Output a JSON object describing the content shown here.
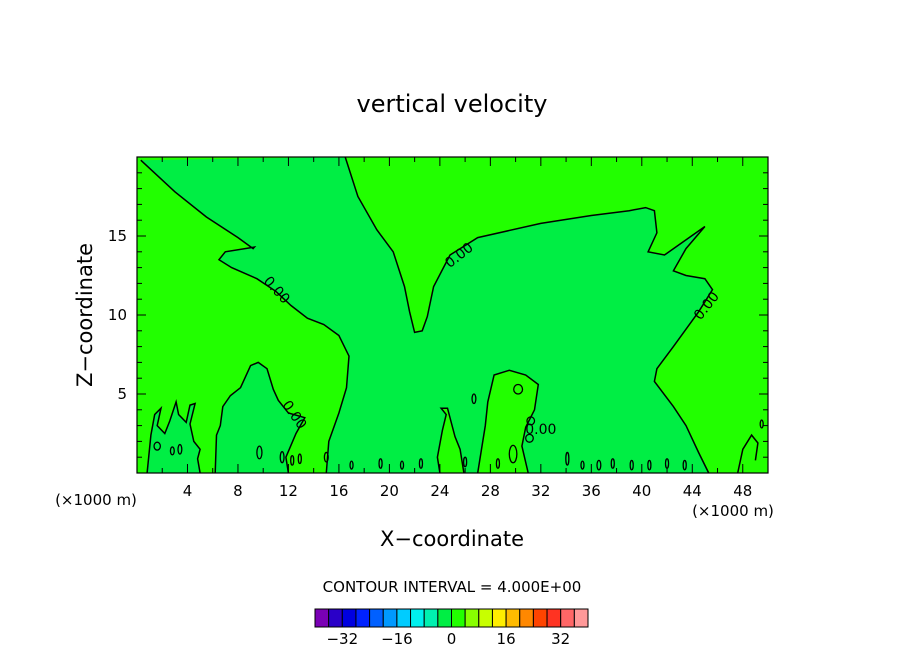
{
  "chart_data": {
    "type": "heatmap",
    "title": "vertical velocity",
    "xlabel": "X−coordinate",
    "ylabel": "Z−coordinate",
    "x_unit": "(×1000 m)",
    "xlim": [
      0,
      50
    ],
    "ylim": [
      0,
      20
    ],
    "x_ticks": [
      4,
      8,
      12,
      16,
      20,
      24,
      28,
      32,
      36,
      40,
      44,
      48
    ],
    "y_ticks": [
      5,
      10,
      15
    ],
    "contour_interval_text": "CONTOUR INTERVAL = 4.000E+00",
    "contour_label": "0.00",
    "region_colors": {
      "positive": "#22ff00",
      "negative": "#00ee44"
    },
    "zero_contour": [
      [
        [
          0.3,
          19.8
        ],
        [
          3.0,
          17.8
        ],
        [
          5.5,
          16.2
        ],
        [
          8.0,
          14.9
        ],
        [
          9.2,
          14.2
        ],
        [
          9.3,
          14.3
        ],
        [
          7.0,
          14.0
        ],
        [
          6.5,
          13.5
        ],
        [
          7.5,
          13.0
        ],
        [
          9.5,
          12.3
        ],
        [
          11.0,
          11.5
        ],
        [
          12.2,
          10.6
        ],
        [
          13.5,
          9.8
        ],
        [
          14.8,
          9.4
        ],
        [
          16.0,
          8.7
        ],
        [
          16.8,
          7.4
        ],
        [
          16.6,
          5.4
        ],
        [
          16.0,
          3.8
        ],
        [
          15.2,
          2.0
        ],
        [
          15.0,
          0
        ]
      ],
      [
        [
          16.5,
          20
        ],
        [
          17.5,
          17.5
        ],
        [
          19.0,
          15.4
        ],
        [
          20.3,
          14.0
        ],
        [
          21.2,
          11.8
        ],
        [
          21.6,
          10.2
        ],
        [
          22.0,
          8.9
        ],
        [
          22.6,
          9.0
        ],
        [
          23.0,
          9.9
        ],
        [
          23.5,
          11.8
        ],
        [
          24.8,
          13.8
        ],
        [
          27.0,
          14.9
        ],
        [
          32.0,
          15.8
        ],
        [
          36.0,
          16.3
        ],
        [
          39.0,
          16.6
        ],
        [
          40.3,
          16.8
        ],
        [
          41.0,
          16.6
        ],
        [
          41.2,
          15.2
        ],
        [
          40.5,
          14.0
        ],
        [
          41.8,
          13.8
        ],
        [
          45.0,
          15.6
        ],
        [
          43.5,
          14.2
        ],
        [
          42.5,
          12.8
        ],
        [
          43.5,
          12.5
        ],
        [
          45.0,
          12.3
        ],
        [
          45.6,
          11.6
        ],
        [
          44.5,
          10.2
        ],
        [
          42.5,
          8.0
        ],
        [
          41.2,
          6.6
        ],
        [
          41.0,
          5.8
        ],
        [
          42.5,
          4.2
        ],
        [
          43.5,
          3.0
        ],
        [
          44.5,
          1.3
        ],
        [
          45.3,
          0
        ]
      ],
      [
        [
          0.8,
          0
        ],
        [
          1.1,
          2.4
        ],
        [
          1.4,
          3.7
        ],
        [
          1.9,
          4.1
        ],
        [
          1.6,
          3.0
        ],
        [
          2.2,
          2.5
        ],
        [
          2.6,
          3.3
        ],
        [
          3.1,
          4.5
        ],
        [
          3.3,
          3.7
        ],
        [
          3.9,
          3.2
        ],
        [
          4.2,
          4.3
        ],
        [
          4.6,
          4.4
        ],
        [
          4.2,
          3.1
        ],
        [
          4.5,
          2.0
        ],
        [
          5.0,
          1.5
        ],
        [
          4.8,
          0.9
        ],
        [
          5.0,
          0
        ]
      ],
      [
        [
          6.2,
          0
        ],
        [
          6.3,
          2.4
        ],
        [
          6.6,
          3.0
        ],
        [
          6.8,
          4.2
        ],
        [
          7.4,
          4.9
        ],
        [
          8.2,
          5.4
        ],
        [
          9.0,
          6.8
        ],
        [
          9.6,
          7.0
        ],
        [
          10.3,
          6.6
        ],
        [
          10.8,
          5.3
        ],
        [
          11.2,
          4.6
        ],
        [
          12.0,
          3.8
        ],
        [
          13.3,
          3.5
        ],
        [
          12.6,
          2.5
        ],
        [
          11.8,
          1.0
        ],
        [
          12.0,
          0
        ]
      ],
      [
        [
          24.0,
          0
        ],
        [
          23.8,
          1.0
        ],
        [
          24.2,
          2.7
        ],
        [
          24.5,
          3.7
        ],
        [
          24.1,
          4.1
        ],
        [
          24.6,
          4.1
        ],
        [
          25.2,
          2.3
        ],
        [
          25.6,
          1.5
        ],
        [
          25.9,
          0
        ]
      ],
      [
        [
          27.0,
          0
        ],
        [
          27.3,
          1.5
        ],
        [
          27.6,
          3.0
        ],
        [
          27.8,
          4.5
        ],
        [
          28.3,
          6.2
        ],
        [
          29.5,
          6.5
        ],
        [
          30.8,
          6.2
        ],
        [
          31.8,
          5.6
        ],
        [
          31.5,
          4.0
        ],
        [
          30.8,
          2.9
        ],
        [
          30.5,
          1.7
        ],
        [
          31.0,
          0
        ]
      ],
      [
        [
          47.6,
          0
        ],
        [
          48.0,
          1.5
        ],
        [
          48.7,
          2.4
        ],
        [
          49.2,
          1.9
        ],
        [
          49.0,
          0.8
        ]
      ]
    ],
    "small_contours": [
      [
        30.2,
        5.3,
        0.35,
        0.3
      ],
      [
        29.8,
        1.2,
        0.3,
        0.55
      ],
      [
        31.1,
        2.2,
        0.3,
        0.25
      ],
      [
        31.2,
        3.3,
        0.3,
        0.25
      ],
      [
        26.7,
        4.7,
        0.15,
        0.3
      ],
      [
        1.6,
        1.7,
        0.25,
        0.25
      ],
      [
        2.8,
        1.4,
        0.15,
        0.25
      ],
      [
        3.4,
        1.5,
        0.15,
        0.3
      ],
      [
        9.7,
        1.3,
        0.2,
        0.4
      ],
      [
        11.5,
        1.0,
        0.15,
        0.35
      ],
      [
        12.3,
        0.8,
        0.12,
        0.3
      ],
      [
        12.9,
        0.9,
        0.12,
        0.3
      ],
      [
        15.0,
        1.0,
        0.15,
        0.3
      ],
      [
        17.0,
        0.5,
        0.1,
        0.25
      ],
      [
        19.3,
        0.6,
        0.12,
        0.3
      ],
      [
        21.0,
        0.5,
        0.1,
        0.25
      ],
      [
        22.5,
        0.6,
        0.12,
        0.3
      ],
      [
        26.0,
        0.7,
        0.12,
        0.3
      ],
      [
        28.6,
        0.6,
        0.12,
        0.3
      ],
      [
        34.1,
        0.9,
        0.12,
        0.4
      ],
      [
        35.3,
        0.5,
        0.1,
        0.25
      ],
      [
        36.6,
        0.5,
        0.15,
        0.3
      ],
      [
        37.7,
        0.6,
        0.12,
        0.3
      ],
      [
        39.2,
        0.5,
        0.12,
        0.3
      ],
      [
        40.6,
        0.5,
        0.12,
        0.3
      ],
      [
        42.0,
        0.6,
        0.12,
        0.3
      ],
      [
        43.4,
        0.5,
        0.12,
        0.3
      ],
      [
        49.5,
        3.1,
        0.1,
        0.25
      ]
    ],
    "contour_labels": [
      {
        "x": 11.1,
        "y": 11.6,
        "angle": 48
      },
      {
        "x": 25.5,
        "y": 13.8,
        "angle": -38
      },
      {
        "x": 45.1,
        "y": 10.6,
        "angle": -52
      },
      {
        "x": 12.5,
        "y": 3.7,
        "angle": 55
      },
      {
        "x": 32.0,
        "y": 2.8,
        "angle": 0
      }
    ],
    "colorbar": {
      "colors": [
        "#7a00b5",
        "#2a00c8",
        "#0000e0",
        "#0022ff",
        "#0060ff",
        "#0099ff",
        "#00ccff",
        "#00f0ee",
        "#00f0b0",
        "#00ee44",
        "#22ff00",
        "#88ff00",
        "#c8ff00",
        "#ffee00",
        "#ffbb00",
        "#ff8800",
        "#ff4400",
        "#ff3322",
        "#ff6666",
        "#ff9999"
      ],
      "tick_labels": [
        "−32",
        "−16",
        "0",
        "16",
        "32"
      ],
      "tick_values": [
        -32,
        -16,
        0,
        16,
        32
      ],
      "min": -40,
      "max": 40
    }
  }
}
